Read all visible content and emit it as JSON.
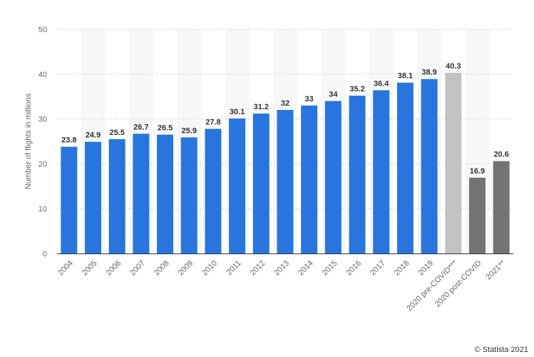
{
  "chart_data": {
    "type": "bar",
    "title": "",
    "xlabel": "",
    "ylabel": "Number of flights in millions",
    "ylim": [
      0,
      50
    ],
    "yticks": [
      0,
      10,
      20,
      30,
      40,
      50
    ],
    "grid": true,
    "categories": [
      "2004",
      "2005",
      "2006",
      "2007",
      "2008",
      "2009",
      "2010",
      "2011",
      "2012",
      "2013",
      "2014",
      "2015",
      "2016",
      "2017",
      "2018",
      "2019",
      "2020 pre-COVID***",
      "2020 post-COVID",
      "2021**"
    ],
    "values": [
      23.8,
      24.9,
      25.5,
      26.7,
      26.5,
      25.9,
      27.8,
      30.1,
      31.2,
      32,
      33,
      34,
      35.2,
      36.4,
      38.1,
      38.9,
      40.3,
      16.9,
      20.6
    ],
    "data_labels": [
      "23.8",
      "24.9",
      "25.5",
      "26.7",
      "26.5",
      "25.9",
      "27.8",
      "30.1",
      "31.2",
      "32",
      "33",
      "34",
      "35.2",
      "36.4",
      "38.1",
      "38.9",
      "40.3",
      "16.9",
      "20.6"
    ],
    "bar_colors": [
      "#2876dd",
      "#2876dd",
      "#2876dd",
      "#2876dd",
      "#2876dd",
      "#2876dd",
      "#2876dd",
      "#2876dd",
      "#2876dd",
      "#2876dd",
      "#2876dd",
      "#2876dd",
      "#2876dd",
      "#2876dd",
      "#2876dd",
      "#2876dd",
      "#c2c2c2",
      "#737373",
      "#737373"
    ],
    "band_color": "#f7f7f7"
  },
  "credit": "© Statista 2021"
}
